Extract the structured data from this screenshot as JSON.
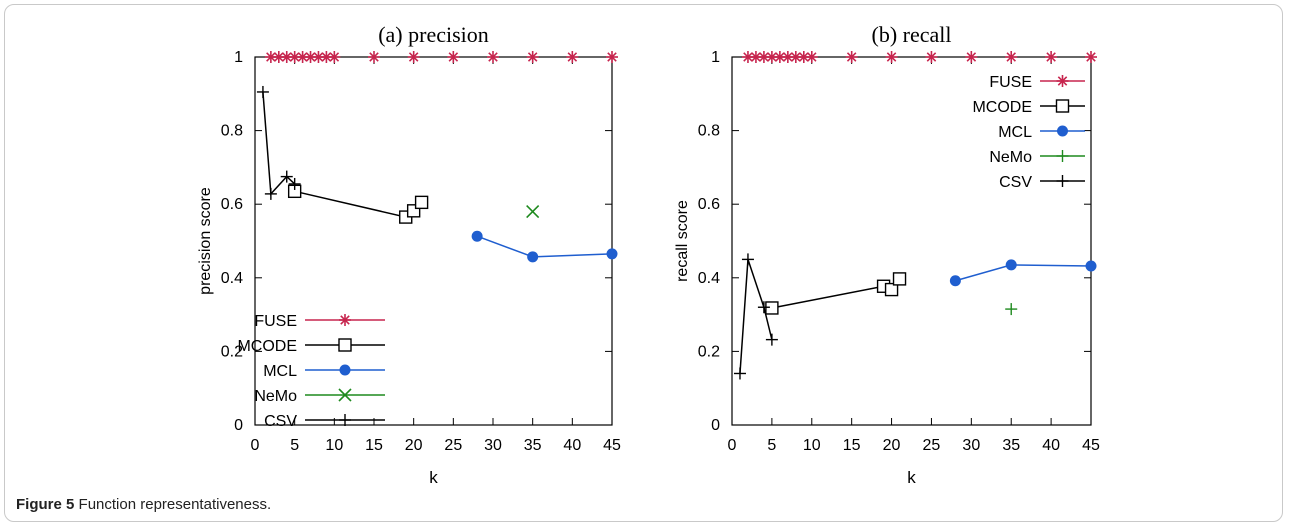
{
  "caption": {
    "label": "Figure 5",
    "text": "Function representativeness."
  },
  "colors": {
    "FUSE": "#c7254e",
    "MCODE": "#000000",
    "MCL": "#1f5ecf",
    "NeMo": "#1e8a1e",
    "CSV": "#000000"
  },
  "chart_data": [
    {
      "type": "line",
      "title": "(a) precision",
      "xlabel": "k",
      "ylabel": "precision score",
      "xlim": [
        0,
        45
      ],
      "ylim": [
        0,
        1
      ],
      "xticks": [
        "0",
        "5",
        "10",
        "15",
        "20",
        "25",
        "30",
        "35",
        "40",
        "45"
      ],
      "yticks": [
        "0",
        "0.2",
        "0.4",
        "0.6",
        "0.8",
        "1"
      ],
      "legend_position": "bottom-left",
      "series": [
        {
          "name": "FUSE",
          "marker": "asterisk",
          "line": false,
          "x": [
            2,
            3,
            4,
            5,
            6,
            7,
            8,
            9,
            10,
            15,
            20,
            25,
            30,
            35,
            40,
            45
          ],
          "y": [
            1,
            1,
            1,
            1,
            1,
            1,
            1,
            1,
            1,
            1,
            1,
            1,
            1,
            1,
            1,
            1
          ]
        },
        {
          "name": "MCODE",
          "marker": "square",
          "line": true,
          "x": [
            5,
            19,
            20,
            21
          ],
          "y": [
            0.635,
            0.565,
            0.582,
            0.605
          ]
        },
        {
          "name": "MCL",
          "marker": "circle",
          "line": true,
          "x": [
            28,
            35,
            45
          ],
          "y": [
            0.513,
            0.457,
            0.465
          ]
        },
        {
          "name": "NeMo",
          "marker": "x",
          "line": false,
          "x": [
            35
          ],
          "y": [
            0.58
          ]
        },
        {
          "name": "CSV",
          "marker": "plus",
          "line": true,
          "x": [
            1,
            2,
            4,
            5
          ],
          "y": [
            0.905,
            0.628,
            0.675,
            0.655
          ]
        }
      ]
    },
    {
      "type": "line",
      "title": "(b) recall",
      "xlabel": "k",
      "ylabel": "recall score",
      "xlim": [
        0,
        45
      ],
      "ylim": [
        0,
        1
      ],
      "xticks": [
        "0",
        "5",
        "10",
        "15",
        "20",
        "25",
        "30",
        "35",
        "40",
        "45"
      ],
      "yticks": [
        "0",
        "0.2",
        "0.4",
        "0.6",
        "0.8",
        "1"
      ],
      "legend_position": "top-right",
      "series": [
        {
          "name": "FUSE",
          "marker": "asterisk",
          "line": false,
          "x": [
            2,
            3,
            4,
            5,
            6,
            7,
            8,
            9,
            10,
            15,
            20,
            25,
            30,
            35,
            40,
            45
          ],
          "y": [
            1,
            1,
            1,
            1,
            1,
            1,
            1,
            1,
            1,
            1,
            1,
            1,
            1,
            1,
            1,
            1
          ]
        },
        {
          "name": "MCODE",
          "marker": "square",
          "line": true,
          "x": [
            5,
            19,
            20,
            21
          ],
          "y": [
            0.318,
            0.377,
            0.368,
            0.397
          ]
        },
        {
          "name": "MCL",
          "marker": "circle",
          "line": true,
          "x": [
            28,
            35,
            45
          ],
          "y": [
            0.392,
            0.435,
            0.432
          ]
        },
        {
          "name": "NeMo",
          "marker": "plus",
          "line": false,
          "x": [
            35
          ],
          "y": [
            0.315
          ]
        },
        {
          "name": "CSV",
          "marker": "plus",
          "line": true,
          "x": [
            1,
            2,
            4,
            5
          ],
          "y": [
            0.14,
            0.45,
            0.32,
            0.232
          ]
        }
      ]
    }
  ]
}
